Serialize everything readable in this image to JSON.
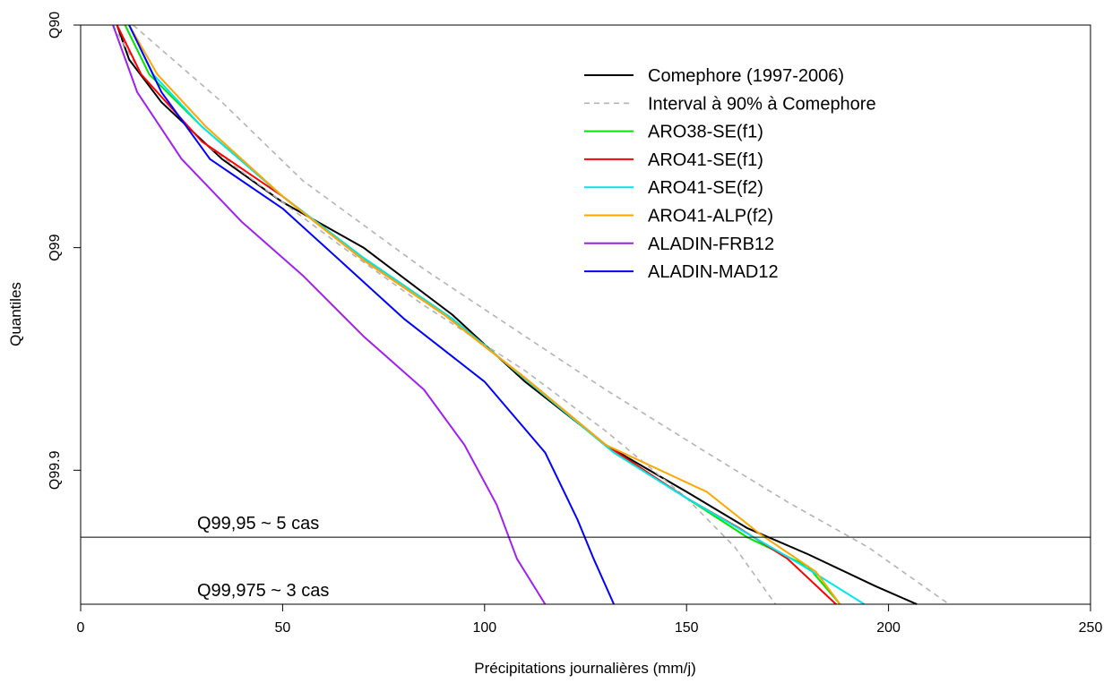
{
  "chart_data": {
    "type": "line",
    "xlabel": "Précipitations journalières (mm/j)",
    "ylabel": "Quantiles",
    "xlim": [
      0,
      250
    ],
    "x_ticks": [
      0,
      50,
      100,
      150,
      200,
      250
    ],
    "y_scale": "log of exceedance probability (1 - q)",
    "y_ticks": [
      {
        "label": "Q90",
        "exceed": 0.1
      },
      {
        "label": "Q99",
        "exceed": 0.01
      },
      {
        "label": "Q99.9",
        "exceed": 0.001
      }
    ],
    "ylim_exceed": [
      0.1,
      0.00025
    ],
    "grid": false,
    "legend_position": "top-right",
    "hlines": [
      {
        "label": "Q99,95 ~ 5 cas",
        "exceed": 0.0005
      },
      {
        "label": "Q99,975 ~ 3 cas",
        "exceed": 0.00025
      }
    ],
    "series": [
      {
        "name": "Comephore (1997-2006)",
        "color": "#000000",
        "dash": false,
        "points": [
          [
            9,
            0.1
          ],
          [
            12,
            0.07
          ],
          [
            20,
            0.045
          ],
          [
            35,
            0.025
          ],
          [
            50,
            0.016
          ],
          [
            70,
            0.01
          ],
          [
            92,
            0.005
          ],
          [
            110,
            0.0025
          ],
          [
            130,
            0.0013
          ],
          [
            150,
            0.0008
          ],
          [
            165,
            0.00055
          ],
          [
            180,
            0.00042
          ],
          [
            197,
            0.0003
          ],
          [
            207,
            0.00025
          ]
        ]
      },
      {
        "name": "Interval à 90% à Comephore",
        "color": "#b3b3b3",
        "dash": true,
        "points": [
          [
            13,
            0.1
          ],
          [
            35,
            0.045
          ],
          [
            55,
            0.02
          ],
          [
            85,
            0.008
          ],
          [
            110,
            0.004
          ],
          [
            130,
            0.0023
          ],
          [
            155,
            0.0012
          ],
          [
            175,
            0.00072
          ],
          [
            195,
            0.00045
          ],
          [
            215,
            0.00025
          ]
        ]
      },
      {
        "name": "",
        "color": "#b3b3b3",
        "dash": true,
        "points": [
          [
            8,
            0.1
          ],
          [
            15,
            0.06
          ],
          [
            30,
            0.03
          ],
          [
            50,
            0.016
          ],
          [
            65,
            0.01
          ],
          [
            85,
            0.0055
          ],
          [
            110,
            0.0028
          ],
          [
            130,
            0.0015
          ],
          [
            150,
            0.00075
          ],
          [
            162,
            0.00045
          ],
          [
            172,
            0.00025
          ]
        ]
      },
      {
        "name": "ARO38-SE(f1)",
        "color": "#00e600",
        "dash": false,
        "points": [
          [
            11,
            0.1
          ],
          [
            17,
            0.06
          ],
          [
            30,
            0.035
          ],
          [
            50,
            0.017
          ],
          [
            70,
            0.009
          ],
          [
            92,
            0.0048
          ],
          [
            112,
            0.0024
          ],
          [
            132,
            0.0012
          ],
          [
            150,
            0.00075
          ],
          [
            165,
            0.0005
          ],
          [
            180,
            0.00037
          ],
          [
            188,
            0.00025
          ]
        ]
      },
      {
        "name": "ARO41-SE(f1)",
        "color": "#ff0000",
        "dash": false,
        "points": [
          [
            9,
            0.1
          ],
          [
            15,
            0.06
          ],
          [
            30,
            0.03
          ],
          [
            50,
            0.017
          ],
          [
            70,
            0.0088
          ],
          [
            90,
            0.005
          ],
          [
            110,
            0.0026
          ],
          [
            130,
            0.0013
          ],
          [
            150,
            0.00075
          ],
          [
            163,
            0.00055
          ],
          [
            175,
            0.0004
          ],
          [
            187,
            0.00025
          ]
        ]
      },
      {
        "name": "ARO41-SE(f2)",
        "color": "#00e5ee",
        "dash": false,
        "points": [
          [
            12,
            0.1
          ],
          [
            18,
            0.06
          ],
          [
            30,
            0.035
          ],
          [
            50,
            0.017
          ],
          [
            70,
            0.009
          ],
          [
            92,
            0.0048
          ],
          [
            112,
            0.0024
          ],
          [
            132,
            0.0012
          ],
          [
            150,
            0.00075
          ],
          [
            165,
            0.00052
          ],
          [
            178,
            0.00038
          ],
          [
            194,
            0.00025
          ]
        ]
      },
      {
        "name": "ARO41-ALP(f2)",
        "color": "#ffa500",
        "dash": false,
        "points": [
          [
            12,
            0.1
          ],
          [
            19,
            0.06
          ],
          [
            31,
            0.035
          ],
          [
            50,
            0.017
          ],
          [
            70,
            0.0088
          ],
          [
            90,
            0.005
          ],
          [
            110,
            0.0026
          ],
          [
            130,
            0.0013
          ],
          [
            155,
            0.0008
          ],
          [
            168,
            0.00052
          ],
          [
            182,
            0.00035
          ],
          [
            188,
            0.00025
          ]
        ]
      },
      {
        "name": "ALADIN-FRB12",
        "color": "#a020f0",
        "dash": false,
        "points": [
          [
            8,
            0.1
          ],
          [
            14,
            0.05
          ],
          [
            25,
            0.025
          ],
          [
            40,
            0.013
          ],
          [
            55,
            0.0075
          ],
          [
            70,
            0.004
          ],
          [
            85,
            0.0023
          ],
          [
            95,
            0.0013
          ],
          [
            103,
            0.0007
          ],
          [
            108,
            0.0004
          ],
          [
            115,
            0.00025
          ]
        ]
      },
      {
        "name": "ALADIN-MAD12",
        "color": "#0000ff",
        "dash": false,
        "points": [
          [
            12,
            0.1
          ],
          [
            20,
            0.05
          ],
          [
            32,
            0.025
          ],
          [
            50,
            0.015
          ],
          [
            65,
            0.0085
          ],
          [
            80,
            0.0048
          ],
          [
            100,
            0.0025
          ],
          [
            115,
            0.0012
          ],
          [
            123,
            0.0006
          ],
          [
            127,
            0.0004
          ],
          [
            132,
            0.00025
          ]
        ]
      }
    ]
  }
}
